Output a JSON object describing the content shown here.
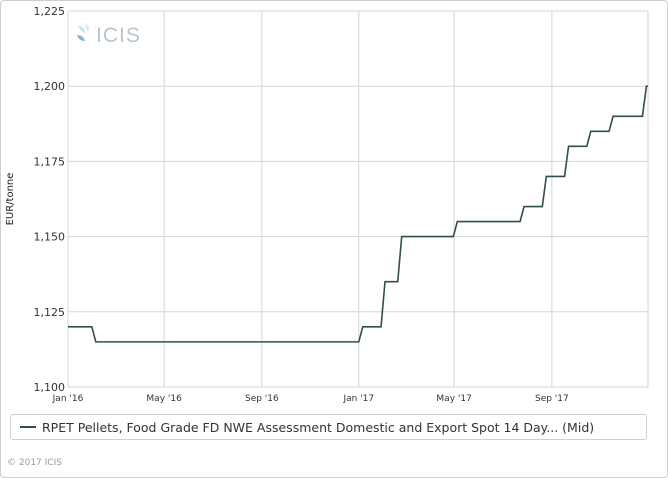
{
  "watermark": {
    "text": "ICIS"
  },
  "legend": {
    "label": "RPET Pellets, Food Grade FD NWE Assessment Domestic and Export Spot 14 Day... (Mid)"
  },
  "footer": {
    "copyright": "© 2017 ICIS"
  },
  "colors": {
    "series": "#2f4f4f",
    "grid": "#d6d6d6",
    "watermark": "#b8c4cc"
  },
  "chart_data": {
    "type": "line",
    "line_style": "step",
    "ylabel": "EUR/tonne",
    "xlabel": "",
    "title": "",
    "ylim": [
      1100,
      1225
    ],
    "yticks": [
      "1,100",
      "1,125",
      "1,150",
      "1,175",
      "1,200",
      "1,225"
    ],
    "xlim": [
      "2016-01-01",
      "2017-12-31"
    ],
    "xticks": [
      {
        "date": "2016-01-01",
        "label": "Jan '16"
      },
      {
        "date": "2016-05-01",
        "label": "May '16"
      },
      {
        "date": "2016-09-01",
        "label": "Sep '16"
      },
      {
        "date": "2017-01-01",
        "label": "Jan '17"
      },
      {
        "date": "2017-05-01",
        "label": "May '17"
      },
      {
        "date": "2017-09-01",
        "label": "Sep '17"
      }
    ],
    "grid": true,
    "legend_position": "bottom",
    "series": [
      {
        "name": "RPET Pellets, Food Grade FD NWE Assessment Domestic and Export Spot 14 Day... (Mid)",
        "points": [
          {
            "x": "2016-01-01",
            "y": 1120
          },
          {
            "x": "2016-02-05",
            "y": 1115
          },
          {
            "x": "2017-01-06",
            "y": 1120
          },
          {
            "x": "2017-02-03",
            "y": 1135
          },
          {
            "x": "2017-02-24",
            "y": 1150
          },
          {
            "x": "2017-05-05",
            "y": 1155
          },
          {
            "x": "2017-07-28",
            "y": 1160
          },
          {
            "x": "2017-08-25",
            "y": 1170
          },
          {
            "x": "2017-09-22",
            "y": 1180
          },
          {
            "x": "2017-10-20",
            "y": 1185
          },
          {
            "x": "2017-11-17",
            "y": 1190
          },
          {
            "x": "2017-12-29",
            "y": 1200
          }
        ]
      }
    ]
  }
}
